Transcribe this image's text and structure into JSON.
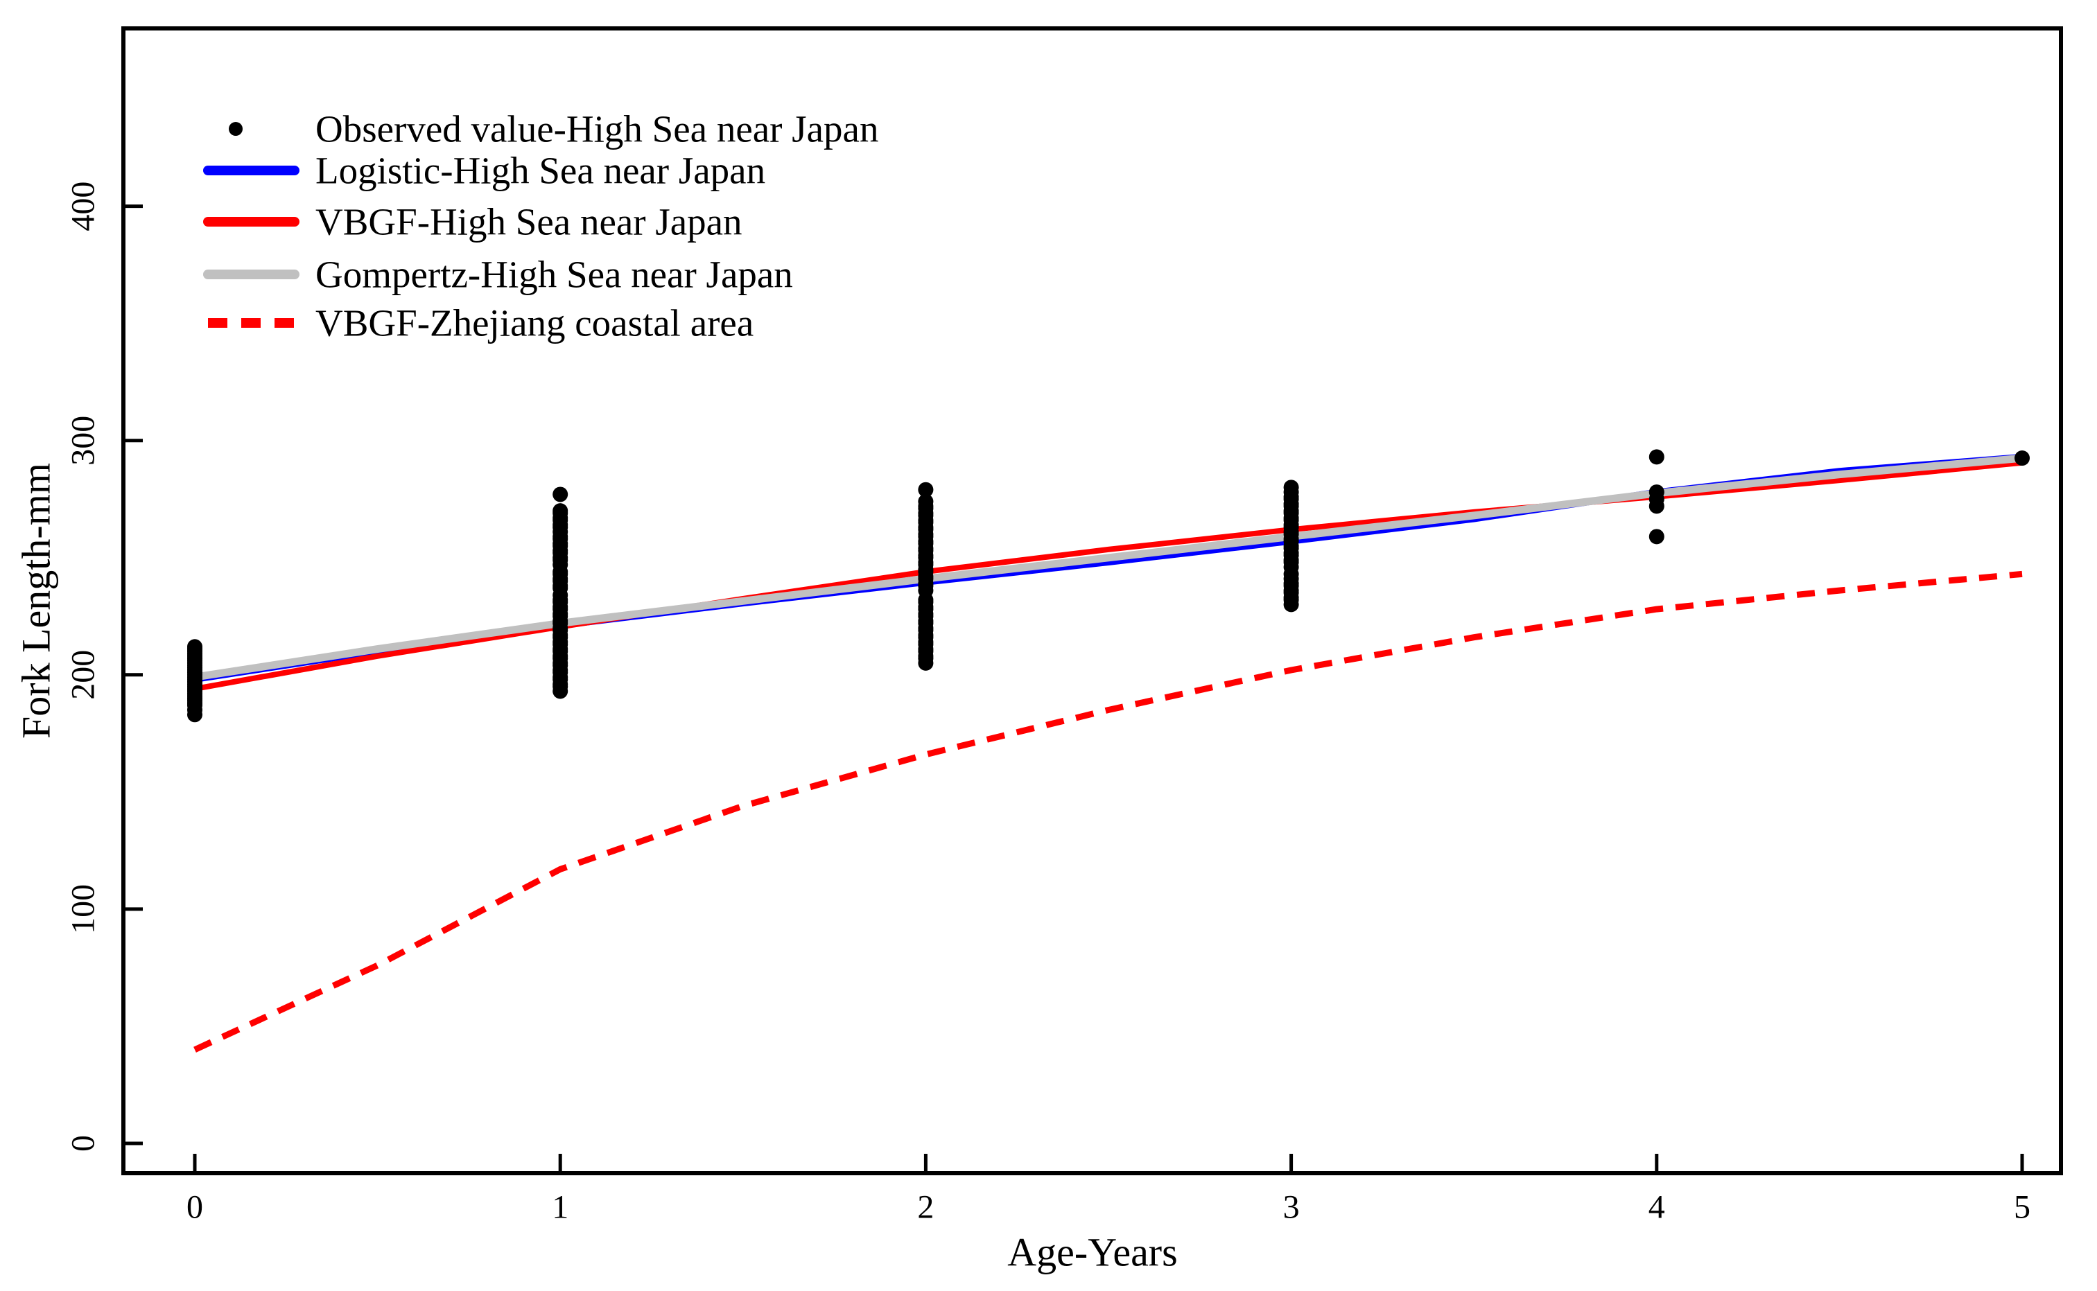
{
  "chart_data": {
    "type": "scatter",
    "title": "",
    "xlabel": "Age-Years",
    "ylabel": "Fork Length-mm",
    "xlim": [
      0,
      5
    ],
    "ylim": [
      0,
      400
    ],
    "x_ticks": [
      0,
      1,
      2,
      3,
      4,
      5
    ],
    "y_ticks": [
      0,
      100,
      200,
      300,
      400
    ],
    "grid": false,
    "legend_position": "top-left-inside",
    "legend": [
      {
        "label": "Observed value-High Sea near Japan",
        "style": "point",
        "color": "#000000"
      },
      {
        "label": "Logistic-High Sea near Japan",
        "style": "solid-line",
        "color": "#0000ff"
      },
      {
        "label": "VBGF-High Sea near Japan",
        "style": "solid-line",
        "color": "#ff0000"
      },
      {
        "label": "Gompertz-High Sea near Japan",
        "style": "solid-line",
        "color": "#c0c0c0"
      },
      {
        "label": "VBGF-Zhejiang coastal area",
        "style": "dashed-line",
        "color": "#ff0000"
      }
    ],
    "observed": {
      "label": "Observed value-High Sea near Japan",
      "color": "#000000",
      "marker": "filled-circle",
      "by_age": {
        "0": [
          183,
          185,
          187,
          188,
          189,
          190,
          191,
          192,
          193,
          194,
          195,
          196,
          197,
          198,
          199,
          200,
          201,
          202,
          203,
          204,
          205,
          206,
          207,
          208,
          209,
          210,
          211,
          212
        ],
        "1": [
          193,
          195,
          196,
          198,
          199,
          201,
          202,
          204,
          205,
          207,
          208,
          210,
          211,
          213,
          214,
          216,
          217,
          219,
          220,
          222,
          223,
          225,
          226,
          228,
          229,
          231,
          232,
          234,
          237,
          238,
          240,
          241,
          243,
          244,
          247,
          249,
          250,
          252,
          253,
          255,
          256,
          258,
          259,
          261,
          263,
          264,
          266,
          267,
          269,
          270,
          277
        ],
        "2": [
          205,
          207,
          208,
          210,
          211,
          213,
          214,
          216,
          217,
          219,
          220,
          222,
          223,
          225,
          226,
          228,
          229,
          231,
          232,
          236,
          238,
          239,
          241,
          242,
          244,
          245,
          247,
          248,
          250,
          251,
          253,
          254,
          256,
          257,
          259,
          260,
          262,
          263,
          265,
          266,
          268,
          269,
          271,
          272,
          274,
          279
        ],
        "3": [
          230,
          232,
          233,
          235,
          236,
          238,
          239,
          241,
          243,
          246,
          248,
          249,
          251,
          252,
          254,
          255,
          257,
          258,
          260,
          261,
          263,
          264,
          266,
          267,
          269,
          270,
          272,
          273,
          275,
          276,
          278,
          280
        ],
        "4": [
          259,
          272,
          275,
          278,
          293
        ],
        "5": [
          292.5
        ]
      }
    },
    "series": [
      {
        "name": "Logistic-High Sea near Japan",
        "color": "#0000ff",
        "dash": false,
        "points": [
          [
            0,
            198
          ],
          [
            0.5,
            210
          ],
          [
            1,
            221
          ],
          [
            1.5,
            230.5
          ],
          [
            2,
            239.5
          ],
          [
            2.5,
            248
          ],
          [
            3,
            257
          ],
          [
            3.5,
            266.5
          ],
          [
            4,
            278
          ],
          [
            4.5,
            287
          ],
          [
            5,
            293
          ]
        ]
      },
      {
        "name": "VBGF-High Sea near Japan",
        "color": "#ff0000",
        "dash": false,
        "points": [
          [
            0,
            194
          ],
          [
            0.5,
            208
          ],
          [
            1,
            220.5
          ],
          [
            1.5,
            232.5
          ],
          [
            2,
            244
          ],
          [
            2.5,
            253.5
          ],
          [
            3,
            262
          ],
          [
            3.5,
            269.5
          ],
          [
            4,
            276
          ],
          [
            4.5,
            283
          ],
          [
            5,
            290.5
          ]
        ]
      },
      {
        "name": "Gompertz-High Sea near Japan",
        "color": "#c0c0c0",
        "dash": false,
        "points": [
          [
            0,
            199
          ],
          [
            0.5,
            211
          ],
          [
            1,
            222
          ],
          [
            1.5,
            231.5
          ],
          [
            2,
            241
          ],
          [
            2.5,
            250
          ],
          [
            3,
            259
          ],
          [
            3.5,
            268
          ],
          [
            4,
            277.5
          ],
          [
            4.5,
            285.5
          ],
          [
            5,
            292.5
          ]
        ]
      },
      {
        "name": "VBGF-Zhejiang coastal area",
        "color": "#ff0000",
        "dash": true,
        "points": [
          [
            0,
            40
          ],
          [
            0.5,
            76
          ],
          [
            1,
            117
          ],
          [
            1.5,
            144
          ],
          [
            2,
            166
          ],
          [
            2.5,
            185
          ],
          [
            3,
            202
          ],
          [
            3.5,
            216
          ],
          [
            4,
            228
          ],
          [
            4.5,
            236
          ],
          [
            5,
            243
          ]
        ]
      }
    ]
  }
}
